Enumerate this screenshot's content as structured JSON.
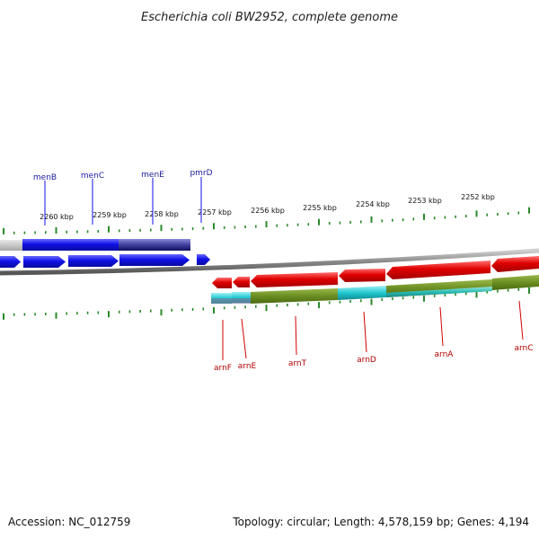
{
  "title": "Escherichia coli BW2952, complete genome",
  "footer": {
    "accession": "Accession: NC_012759",
    "summary": "Topology: circular; Length: 4,578,159 bp; Genes: 4,194"
  },
  "ticks": [
    {
      "label": "2260 kbp"
    },
    {
      "label": "2259 kbp"
    },
    {
      "label": "2258 kbp"
    },
    {
      "label": "2257 kbp"
    },
    {
      "label": "2256 kbp"
    },
    {
      "label": "2255 kbp"
    },
    {
      "label": "2254 kbp"
    },
    {
      "label": "2253 kbp"
    },
    {
      "label": "2252 kbp"
    }
  ],
  "genes_top": [
    {
      "name": "menB"
    },
    {
      "name": "menC"
    },
    {
      "name": "menE"
    },
    {
      "name": "pmrD"
    }
  ],
  "genes_bottom": [
    {
      "name": "arnF"
    },
    {
      "name": "arnE"
    },
    {
      "name": "arnT"
    },
    {
      "name": "arnD"
    },
    {
      "name": "arnA"
    },
    {
      "name": "arnC"
    }
  ],
  "colors": {
    "forward_gene": "#1010e8",
    "reverse_gene": "#e00000",
    "dark_blue": "#101060",
    "cds_olive": "#6b8e23",
    "cds_cyan": "#20c8d0",
    "tick_green": "#2a8a2a",
    "backbone": "#888888"
  }
}
